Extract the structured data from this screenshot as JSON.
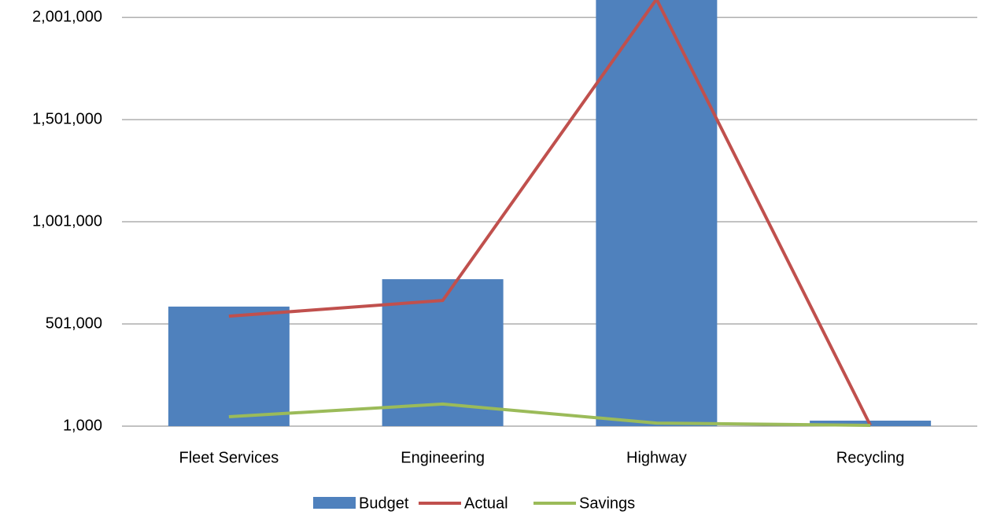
{
  "chart_data": {
    "type": "bar-line",
    "categories": [
      "Fleet Services",
      "Engineering",
      "Highway",
      "Recycling"
    ],
    "series": [
      {
        "name": "Budget",
        "type": "bar",
        "color": "#4f81bd",
        "values": [
          586000,
          720000,
          2200000,
          28000
        ]
      },
      {
        "name": "Actual",
        "type": "line",
        "color": "#c0504d",
        "values": [
          539000,
          616000,
          2090000,
          5000
        ]
      },
      {
        "name": "Savings",
        "type": "line",
        "color": "#9bbb59",
        "values": [
          47000,
          109000,
          16000,
          5000
        ]
      }
    ],
    "ylim": [
      1000,
      2086000
    ],
    "yticks": [
      {
        "value": 1000,
        "label": "1,000"
      },
      {
        "value": 501000,
        "label": "501,000"
      },
      {
        "value": 1001000,
        "label": "1,001,000"
      },
      {
        "value": 1501000,
        "label": "1,501,000"
      },
      {
        "value": 2001000,
        "label": "2,001,000"
      }
    ],
    "grid": true,
    "legend": "bottom"
  }
}
